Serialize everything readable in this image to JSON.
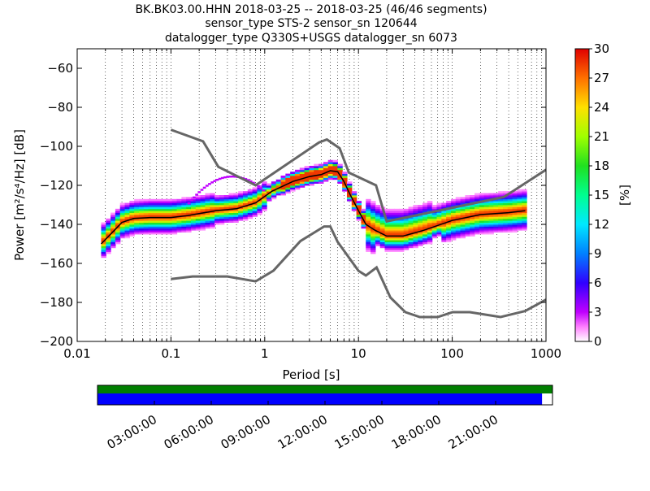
{
  "chart_data": {
    "type": "heatmap",
    "title_lines": [
      "BK.BK03.00.HHN   2018-03-25 -- 2018-03-25  (46/46 segments)",
      "sensor_type STS-2 sensor_sn 120644",
      "datalogger_type Q330S+USGS datalogger_sn 6073"
    ],
    "xlabel": "Period [s]",
    "ylabel": "Power [m²/s⁴/Hz] [dB]",
    "x_scale": "log",
    "xlim": [
      0.01,
      1000
    ],
    "ylim": [
      -200,
      -50
    ],
    "x_ticks": [
      0.01,
      0.1,
      1,
      10,
      100,
      1000
    ],
    "x_tick_labels": [
      "0.01",
      "0.1",
      "1",
      "10",
      "100",
      "1000"
    ],
    "y_ticks": [
      -200,
      -180,
      -160,
      -140,
      -120,
      -100,
      -80,
      -60
    ],
    "y_tick_labels": [
      "−200",
      "−180",
      "−160",
      "−140",
      "−120",
      "−100",
      "−80",
      "−60"
    ],
    "grid": "dotted vertical",
    "colorbar": {
      "label": "[%]",
      "range": [
        0,
        30
      ],
      "ticks": [
        0,
        3,
        6,
        9,
        12,
        15,
        18,
        21,
        24,
        27,
        30
      ],
      "tick_labels": [
        "0",
        "3",
        "6",
        "9",
        "12",
        "15",
        "18",
        "21",
        "24",
        "27",
        "30"
      ]
    },
    "noise_models": [
      {
        "name": "NHNM",
        "x": [
          0.1,
          0.22,
          0.32,
          0.8,
          3.8,
          4.6,
          6.3,
          7.9,
          15.4,
          20,
          354.8,
          1000
        ],
        "y": [
          -91.5,
          -97.4,
          -110.5,
          -120,
          -98,
          -96.5,
          -101,
          -113.5,
          -120,
          -138.5,
          -126,
          -112
        ]
      },
      {
        "name": "NLNM",
        "x": [
          0.1,
          0.17,
          0.4,
          0.8,
          1.24,
          2.4,
          4.3,
          5,
          6,
          10,
          12,
          15.6,
          21.9,
          31.6,
          45,
          70,
          101,
          154,
          328,
          600,
          1000
        ],
        "y": [
          -168,
          -166.7,
          -166.7,
          -169.2,
          -163.7,
          -148.6,
          -141.1,
          -141.1,
          -149,
          -163.8,
          -166.2,
          -162.1,
          -177.5,
          -185,
          -187.5,
          -187.5,
          -185,
          -185,
          -187.5,
          -184.4,
          -178.6
        ]
      }
    ],
    "series": [
      {
        "name": "mode",
        "x": [
          0.018,
          0.025,
          0.03,
          0.04,
          0.06,
          0.1,
          0.15,
          0.2,
          0.3,
          0.5,
          0.8,
          1.2,
          2,
          3,
          4,
          5,
          6,
          7,
          8,
          10,
          12,
          15,
          20,
          30,
          50,
          100,
          200,
          400,
          600
        ],
        "y": [
          -150,
          -143,
          -139,
          -137,
          -136.5,
          -136.5,
          -135.5,
          -134.5,
          -133,
          -132,
          -129,
          -123,
          -118,
          -115.5,
          -114.5,
          -112.5,
          -113,
          -118,
          -124,
          -133,
          -140,
          -143,
          -146,
          -146,
          -143,
          -138,
          -135,
          -134,
          -133
        ]
      }
    ],
    "time_ticks": [
      "03:00:00",
      "06:00:00",
      "09:00:00",
      "12:00:00",
      "15:00:00",
      "18:00:00",
      "21:00:00"
    ],
    "coverage_fraction": 0.977,
    "colors": {
      "noise_model": "#666666",
      "mode_line": "#000000",
      "coverage_top": "#007f00",
      "coverage_bottom": "#0000ff"
    }
  }
}
